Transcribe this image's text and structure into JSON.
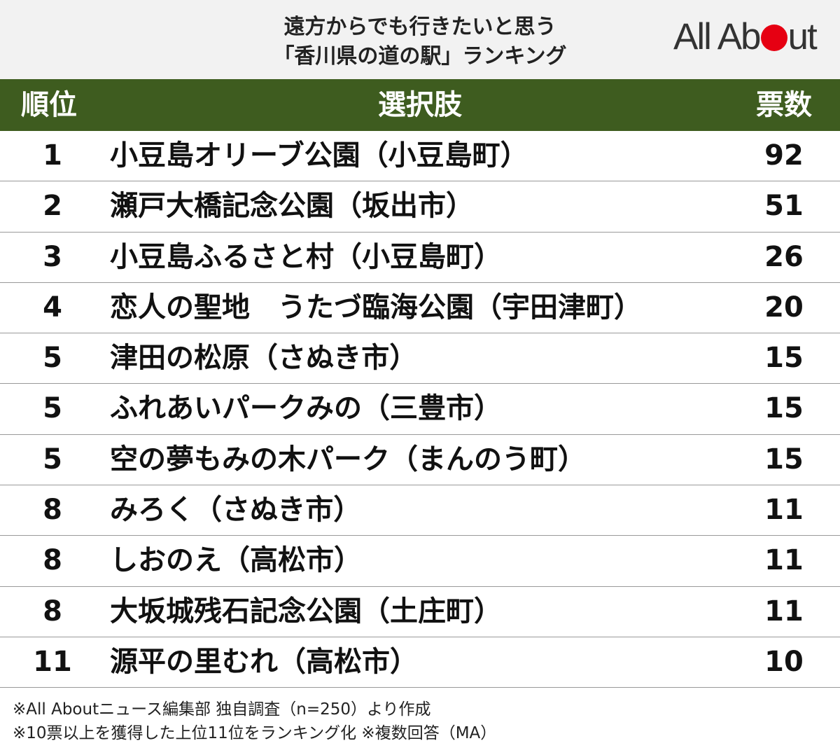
{
  "header": {
    "title_line1": "遠方からでも行きたいと思う",
    "title_line2": "「香川県の道の駅」ランキング",
    "logo_prefix": "All Ab",
    "logo_suffix": "ut"
  },
  "table": {
    "col_rank": "順位",
    "col_choice": "選択肢",
    "col_votes": "票数"
  },
  "chart_data": {
    "type": "table",
    "title": "遠方からでも行きたいと思う「香川県の道の駅」ランキング",
    "columns": [
      "順位",
      "選択肢",
      "票数"
    ],
    "rows": [
      {
        "rank": "1",
        "name": "小豆島オリーブ公園（小豆島町）",
        "votes": 92
      },
      {
        "rank": "2",
        "name": "瀬戸大橋記念公園（坂出市）",
        "votes": 51
      },
      {
        "rank": "3",
        "name": "小豆島ふるさと村（小豆島町）",
        "votes": 26
      },
      {
        "rank": "4",
        "name": "恋人の聖地　うたづ臨海公園（宇田津町）",
        "votes": 20
      },
      {
        "rank": "5",
        "name": "津田の松原（さぬき市）",
        "votes": 15
      },
      {
        "rank": "5",
        "name": "ふれあいパークみの（三豊市）",
        "votes": 15
      },
      {
        "rank": "5",
        "name": "空の夢もみの木パーク（まんのう町）",
        "votes": 15
      },
      {
        "rank": "8",
        "name": "みろく（さぬき市）",
        "votes": 11
      },
      {
        "rank": "8",
        "name": "しおのえ（高松市）",
        "votes": 11
      },
      {
        "rank": "8",
        "name": "大坂城残石記念公園（土庄町）",
        "votes": 11
      },
      {
        "rank": "11",
        "name": "源平の里むれ（高松市）",
        "votes": 10
      }
    ]
  },
  "notes": {
    "line1": "※All Aboutニュース編集部 独自調査（n=250）より作成",
    "line2": "※10票以上を獲得した上位11位をランキング化 ※複数回答（MA）"
  },
  "colors": {
    "header_bg": "#3e5c1f",
    "logo_dot": "#e60012",
    "title_band": "#f2f2f2"
  }
}
